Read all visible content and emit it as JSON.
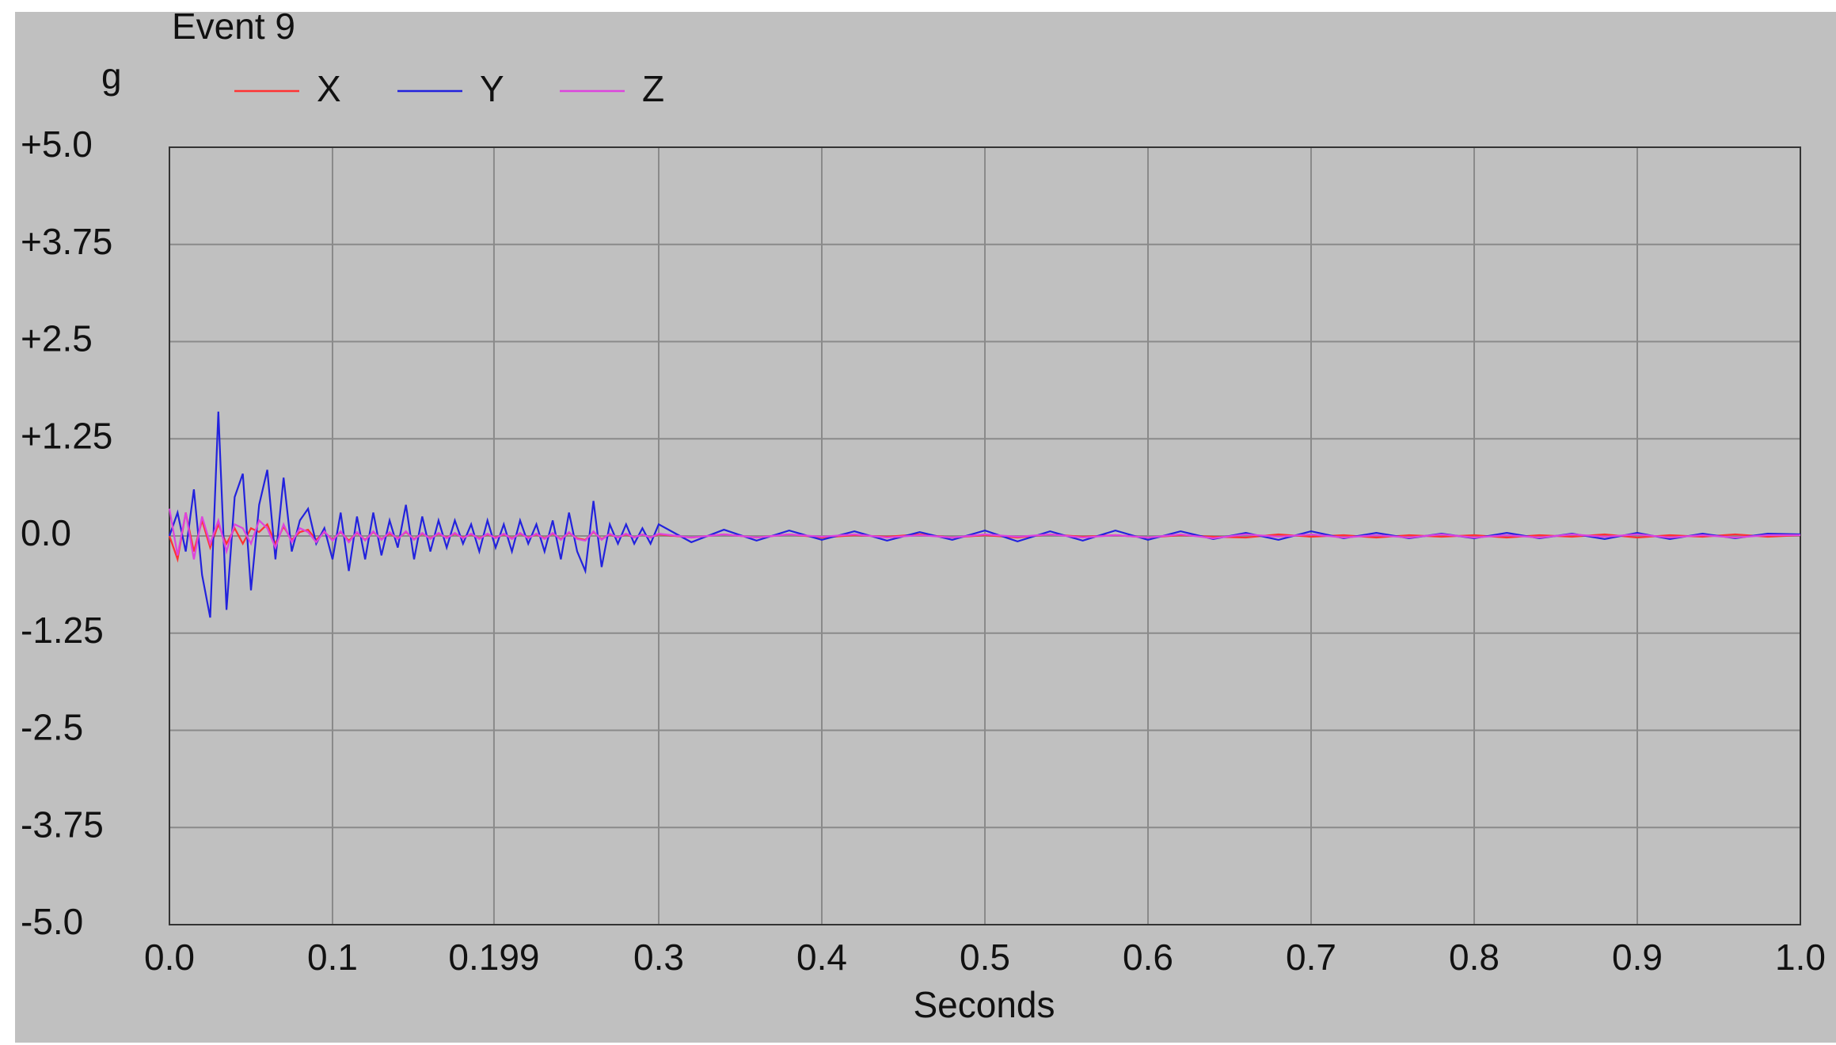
{
  "chart_data": {
    "type": "line",
    "title": "Event 9",
    "y_label": "g",
    "x_label": "Seconds",
    "x": [
      0,
      0.005,
      0.01,
      0.015,
      0.02,
      0.025,
      0.03,
      0.035,
      0.04,
      0.045,
      0.05,
      0.055,
      0.06,
      0.065,
      0.07,
      0.075,
      0.08,
      0.085,
      0.09,
      0.095,
      0.1,
      0.105,
      0.11,
      0.115,
      0.12,
      0.125,
      0.13,
      0.135,
      0.14,
      0.145,
      0.15,
      0.155,
      0.16,
      0.165,
      0.17,
      0.175,
      0.18,
      0.185,
      0.19,
      0.195,
      0.2,
      0.205,
      0.21,
      0.215,
      0.22,
      0.225,
      0.23,
      0.235,
      0.24,
      0.245,
      0.25,
      0.255,
      0.26,
      0.265,
      0.27,
      0.275,
      0.28,
      0.285,
      0.29,
      0.295,
      0.3,
      0.32,
      0.34,
      0.36,
      0.38,
      0.4,
      0.42,
      0.44,
      0.46,
      0.48,
      0.5,
      0.52,
      0.54,
      0.56,
      0.58,
      0.6,
      0.62,
      0.64,
      0.66,
      0.68,
      0.7,
      0.72,
      0.74,
      0.76,
      0.78,
      0.8,
      0.82,
      0.84,
      0.86,
      0.88,
      0.9,
      0.92,
      0.94,
      0.96,
      0.98,
      1
    ],
    "series": [
      {
        "name": "X",
        "color": "#ff3333",
        "values": [
          0,
          -0.3,
          0.3,
          -0.2,
          0.2,
          -0.15,
          0.15,
          -0.1,
          0.1,
          -0.1,
          0.1,
          0.05,
          0.15,
          -0.1,
          0.12,
          -0.05,
          0.05,
          0.08,
          -0.05,
          0.05,
          -0.05,
          0.05,
          -0.06,
          0.04,
          -0.05,
          0.05,
          -0.04,
          0.03,
          -0.03,
          0.05,
          -0.04,
          0.03,
          -0.03,
          0.03,
          -0.02,
          0.03,
          -0.02,
          0.02,
          -0.03,
          0.02,
          -0.02,
          0.02,
          -0.03,
          0.03,
          -0.02,
          0.02,
          -0.03,
          0.03,
          -0.04,
          0.04,
          -0.03,
          -0.05,
          0.05,
          -0.04,
          0.02,
          -0.02,
          0.02,
          -0.02,
          0.02,
          -0.02,
          0.02,
          -0.02,
          0.02,
          -0.02,
          0.02,
          -0.02,
          0.01,
          -0.01,
          0.02,
          -0.02,
          0.01,
          -0.02,
          0.02,
          -0.01,
          0.01,
          -0.02,
          0.01,
          -0.01,
          -0.02,
          0.02,
          -0.01,
          0.01,
          -0.02,
          0.01,
          -0.01,
          0.01,
          -0.02,
          0.01,
          -0.01,
          0.02,
          -0.02,
          0.01,
          -0.01,
          0.02,
          -0.01,
          0.01
        ]
      },
      {
        "name": "Y",
        "color": "#2222dd",
        "values": [
          0,
          0.3,
          -0.2,
          0.6,
          -0.5,
          -1.05,
          1.6,
          -0.95,
          0.5,
          0.8,
          -0.7,
          0.4,
          0.85,
          -0.3,
          0.75,
          -0.2,
          0.2,
          0.35,
          -0.1,
          0.1,
          -0.3,
          0.3,
          -0.45,
          0.25,
          -0.3,
          0.3,
          -0.25,
          0.2,
          -0.15,
          0.4,
          -0.3,
          0.25,
          -0.2,
          0.2,
          -0.15,
          0.2,
          -0.1,
          0.15,
          -0.2,
          0.2,
          -0.15,
          0.15,
          -0.2,
          0.2,
          -0.1,
          0.15,
          -0.2,
          0.2,
          -0.3,
          0.3,
          -0.2,
          -0.45,
          0.45,
          -0.4,
          0.15,
          -0.1,
          0.15,
          -0.1,
          0.1,
          -0.1,
          0.15,
          -0.08,
          0.08,
          -0.06,
          0.07,
          -0.05,
          0.06,
          -0.06,
          0.05,
          -0.05,
          0.07,
          -0.07,
          0.06,
          -0.06,
          0.07,
          -0.05,
          0.06,
          -0.04,
          0.04,
          -0.05,
          0.06,
          -0.03,
          0.04,
          -0.03,
          0.03,
          -0.03,
          0.04,
          -0.03,
          0.03,
          -0.04,
          0.04,
          -0.04,
          0.03,
          -0.03,
          0.03,
          0.02
        ]
      },
      {
        "name": "Z",
        "color": "#dd44dd",
        "values": [
          0.35,
          -0.25,
          0.3,
          -0.3,
          0.25,
          -0.1,
          0.2,
          -0.2,
          0.15,
          0.1,
          -0.1,
          0.2,
          0.1,
          -0.15,
          0.15,
          -0.08,
          0.1,
          0.05,
          -0.08,
          0.06,
          -0.06,
          0.06,
          -0.08,
          0.05,
          -0.06,
          0.06,
          -0.05,
          0.05,
          -0.04,
          0.06,
          -0.05,
          0.04,
          -0.04,
          0.04,
          -0.03,
          0.04,
          -0.03,
          0.03,
          -0.04,
          0.03,
          -0.03,
          0.03,
          -0.04,
          0.04,
          -0.03,
          0.03,
          -0.04,
          0.04,
          -0.05,
          0.05,
          -0.04,
          -0.06,
          0.06,
          -0.05,
          0.03,
          -0.02,
          0.03,
          -0.02,
          0.02,
          -0.02,
          0.03,
          -0.02,
          0.02,
          -0.02,
          0.02,
          -0.01,
          0.02,
          -0.02,
          0.01,
          -0.02,
          0.02,
          -0.01,
          0.02,
          -0.02,
          0.01,
          -0.02,
          0.02,
          -0.03,
          0.02,
          -0.01,
          0.02,
          -0.02,
          0.01,
          -0.02,
          0.02,
          -0.02,
          0.01,
          -0.02,
          0.02,
          -0.01,
          0.02,
          -0.02,
          0.01,
          -0.02,
          0.01,
          0.01
        ]
      }
    ],
    "xlim": [
      0,
      1
    ],
    "xticks": [
      {
        "value": 0,
        "label": "0.0"
      },
      0.1,
      0.199,
      0.3,
      0.4,
      0.5,
      0.6,
      0.7,
      0.8,
      0.9,
      {
        "value": 1,
        "label": "1.0"
      }
    ],
    "ylim": [
      -5,
      5
    ],
    "yticks": [
      {
        "value": 5,
        "label": "+5.0"
      },
      {
        "value": 3.75,
        "label": "+3.75"
      },
      {
        "value": 2.5,
        "label": "+2.5"
      },
      {
        "value": 1.25,
        "label": "+1.25"
      },
      {
        "value": 0,
        "label": "0.0"
      },
      -1.25,
      -2.5,
      -3.75,
      {
        "value": -5,
        "label": "-5.0"
      }
    ],
    "grid": true
  }
}
